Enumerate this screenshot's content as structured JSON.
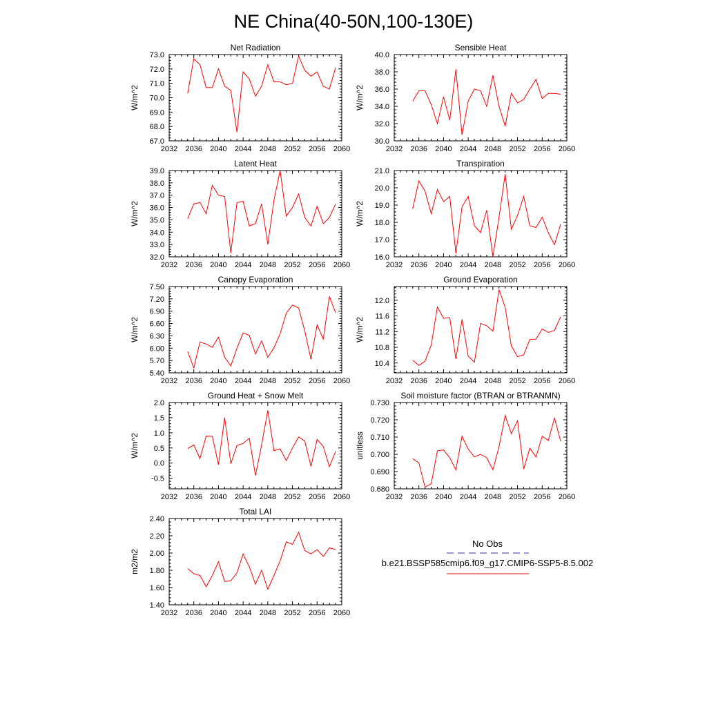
{
  "page": {
    "title": "NE China(40-50N,100-130E)"
  },
  "legend": {
    "obs_label": "No Obs",
    "obs_color": "#3333aa",
    "model_label": "b.e21.BSSP585cmip6.f09_g17.CMIP6-SSP5-8.5.002",
    "model_color": "#ff0000"
  },
  "chart_data": [
    {
      "type": "line",
      "title": "Net Radiation",
      "ylabel": "W/m^2",
      "xlim": [
        2032,
        2060
      ],
      "ylim": [
        67,
        73
      ],
      "xticks": [
        "2032",
        "2036",
        "2040",
        "2044",
        "2048",
        "2052",
        "2056",
        "2060"
      ],
      "yticks": [
        "67.0",
        "68.0",
        "69.0",
        "70.0",
        "71.0",
        "72.0",
        "73.0"
      ],
      "series": [
        {
          "color": "#ff0000",
          "x": [
            2035,
            2036,
            2037,
            2038,
            2039,
            2040,
            2041,
            2042,
            2043,
            2044,
            2045,
            2046,
            2047,
            2048,
            2049,
            2050,
            2051,
            2052,
            2053,
            2054,
            2055,
            2056,
            2057,
            2058,
            2059
          ],
          "y": [
            70.3,
            72.7,
            72.3,
            70.7,
            70.7,
            72.0,
            70.8,
            70.5,
            67.6,
            71.8,
            71.3,
            70.1,
            70.8,
            72.3,
            71.1,
            71.1,
            70.9,
            71.0,
            72.9,
            71.9,
            71.5,
            71.8,
            70.8,
            70.6,
            72.1
          ]
        }
      ]
    },
    {
      "type": "line",
      "title": "Sensible Heat",
      "ylabel": "W/m^2",
      "xlim": [
        2032,
        2060
      ],
      "ylim": [
        30,
        40
      ],
      "xticks": [
        "2032",
        "2036",
        "2040",
        "2044",
        "2048",
        "2052",
        "2056",
        "2060"
      ],
      "yticks": [
        "30.0",
        "32.0",
        "34.0",
        "36.0",
        "38.0",
        "40.0"
      ],
      "series": [
        {
          "color": "#ff0000",
          "x": [
            2035,
            2036,
            2037,
            2038,
            2039,
            2040,
            2041,
            2042,
            2043,
            2044,
            2045,
            2046,
            2047,
            2048,
            2049,
            2050,
            2051,
            2052,
            2053,
            2054,
            2055,
            2056,
            2057,
            2058,
            2059
          ],
          "y": [
            34.6,
            35.8,
            35.8,
            34.2,
            32.0,
            35.1,
            32.4,
            38.3,
            30.7,
            34.6,
            36.0,
            35.8,
            34.0,
            37.6,
            34.0,
            31.7,
            35.5,
            34.4,
            34.8,
            36.0,
            37.1,
            34.9,
            35.5,
            35.5,
            35.4
          ]
        }
      ]
    },
    {
      "type": "line",
      "title": "Latent Heat",
      "ylabel": "W/m^2",
      "xlim": [
        2032,
        2060
      ],
      "ylim": [
        32,
        39
      ],
      "xticks": [
        "2032",
        "2036",
        "2040",
        "2044",
        "2048",
        "2052",
        "2056",
        "2060"
      ],
      "yticks": [
        "32.0",
        "33.0",
        "34.0",
        "35.0",
        "36.0",
        "37.0",
        "38.0",
        "39.0"
      ],
      "series": [
        {
          "color": "#ff0000",
          "x": [
            2035,
            2036,
            2037,
            2038,
            2039,
            2040,
            2041,
            2042,
            2043,
            2044,
            2045,
            2046,
            2047,
            2048,
            2049,
            2050,
            2051,
            2052,
            2053,
            2054,
            2055,
            2056,
            2057,
            2058,
            2059
          ],
          "y": [
            35.1,
            36.3,
            36.4,
            35.5,
            37.8,
            37.0,
            36.9,
            32.3,
            36.4,
            36.5,
            34.5,
            34.7,
            36.3,
            33.0,
            36.6,
            39.0,
            35.3,
            36.0,
            37.1,
            35.2,
            34.5,
            36.1,
            34.7,
            35.2,
            36.3
          ]
        }
      ]
    },
    {
      "type": "line",
      "title": "Transpiration",
      "ylabel": "W/m^2",
      "xlim": [
        2032,
        2060
      ],
      "ylim": [
        16,
        21
      ],
      "xticks": [
        "2032",
        "2036",
        "2040",
        "2044",
        "2048",
        "2052",
        "2056",
        "2060"
      ],
      "yticks": [
        "16.0",
        "17.0",
        "18.0",
        "19.0",
        "20.0",
        "21.0"
      ],
      "series": [
        {
          "color": "#ff0000",
          "x": [
            2035,
            2036,
            2037,
            2038,
            2039,
            2040,
            2041,
            2042,
            2043,
            2044,
            2045,
            2046,
            2047,
            2048,
            2049,
            2050,
            2051,
            2052,
            2053,
            2054,
            2055,
            2056,
            2057,
            2058,
            2059
          ],
          "y": [
            18.8,
            20.4,
            19.8,
            18.5,
            19.9,
            19.2,
            19.5,
            16.2,
            18.9,
            19.5,
            17.8,
            17.4,
            18.7,
            16.0,
            18.3,
            20.8,
            17.6,
            18.4,
            19.5,
            17.8,
            17.7,
            18.3,
            17.4,
            16.7,
            17.9
          ]
        }
      ]
    },
    {
      "type": "line",
      "title": "Canopy Evaporation",
      "ylabel": "W/m^2",
      "xlim": [
        2032,
        2060
      ],
      "ylim": [
        5.4,
        7.5
      ],
      "xticks": [
        "2032",
        "2036",
        "2040",
        "2044",
        "2048",
        "2052",
        "2056",
        "2060"
      ],
      "yticks": [
        "5.40",
        "5.70",
        "6.00",
        "6.30",
        "6.60",
        "6.90",
        "7.20",
        "7.50"
      ],
      "series": [
        {
          "color": "#ff0000",
          "x": [
            2035,
            2036,
            2037,
            2038,
            2039,
            2040,
            2041,
            2042,
            2043,
            2044,
            2045,
            2046,
            2047,
            2048,
            2049,
            2050,
            2051,
            2052,
            2053,
            2054,
            2055,
            2056,
            2057,
            2058,
            2059
          ],
          "y": [
            5.92,
            5.52,
            6.15,
            6.1,
            6.02,
            6.27,
            5.78,
            5.57,
            6.0,
            6.37,
            6.31,
            5.86,
            6.18,
            5.78,
            6.01,
            6.35,
            6.85,
            7.05,
            6.98,
            6.42,
            5.73,
            6.57,
            6.22,
            7.26,
            6.86
          ]
        }
      ]
    },
    {
      "type": "line",
      "title": "Ground Evaporation",
      "ylabel": "W/m^2",
      "xlim": [
        2032,
        2060
      ],
      "ylim": [
        10.15,
        12.35
      ],
      "xticks": [
        "2032",
        "2036",
        "2040",
        "2044",
        "2048",
        "2052",
        "2056",
        "2060"
      ],
      "yticks": [
        "10.4",
        "10.8",
        "11.2",
        "11.6",
        "12.0"
      ],
      "series": [
        {
          "color": "#ff0000",
          "x": [
            2035,
            2036,
            2037,
            2038,
            2039,
            2040,
            2041,
            2042,
            2043,
            2044,
            2045,
            2046,
            2047,
            2048,
            2049,
            2050,
            2051,
            2052,
            2053,
            2054,
            2055,
            2056,
            2057,
            2058,
            2059
          ],
          "y": [
            10.47,
            10.34,
            10.45,
            10.86,
            11.83,
            11.54,
            11.56,
            10.5,
            11.51,
            10.58,
            10.42,
            11.41,
            11.35,
            11.21,
            12.27,
            11.82,
            10.84,
            10.56,
            10.61,
            11.0,
            11.01,
            11.27,
            11.18,
            11.23,
            11.58
          ]
        }
      ]
    },
    {
      "type": "line",
      "title": "Ground Heat + Snow Melt",
      "ylabel": "W/m^2",
      "xlim": [
        2032,
        2060
      ],
      "ylim": [
        -0.85,
        2.0
      ],
      "xticks": [
        "2032",
        "2036",
        "2040",
        "2044",
        "2048",
        "2052",
        "2056",
        "2060"
      ],
      "yticks": [
        "-0.5",
        "0.0",
        "0.5",
        "1.0",
        "1.5",
        "2.0"
      ],
      "series": [
        {
          "color": "#ff0000",
          "x": [
            2035,
            2036,
            2037,
            2038,
            2039,
            2040,
            2041,
            2042,
            2043,
            2044,
            2045,
            2046,
            2047,
            2048,
            2049,
            2050,
            2051,
            2052,
            2053,
            2054,
            2055,
            2056,
            2057,
            2058,
            2059
          ],
          "y": [
            0.48,
            0.6,
            0.15,
            0.89,
            0.88,
            -0.05,
            1.5,
            -0.02,
            0.58,
            0.65,
            0.82,
            -0.41,
            0.6,
            1.74,
            0.41,
            0.47,
            0.08,
            0.5,
            0.86,
            0.73,
            -0.11,
            0.78,
            0.55,
            -0.12,
            0.39
          ]
        }
      ]
    },
    {
      "type": "line",
      "title": "Soil moisture factor (BTRAN or BTRANMN)",
      "ylabel": "unitless",
      "xlim": [
        2032,
        2060
      ],
      "ylim": [
        0.68,
        0.73
      ],
      "xticks": [
        "2032",
        "2036",
        "2040",
        "2044",
        "2048",
        "2052",
        "2056",
        "2060"
      ],
      "yticks": [
        "0.680",
        "0.690",
        "0.700",
        "0.710",
        "0.720",
        "0.730"
      ],
      "series": [
        {
          "color": "#ff0000",
          "x": [
            2035,
            2036,
            2037,
            2038,
            2039,
            2040,
            2041,
            2042,
            2043,
            2044,
            2045,
            2046,
            2047,
            2048,
            2049,
            2050,
            2051,
            2052,
            2053,
            2054,
            2055,
            2056,
            2057,
            2058,
            2059
          ],
          "y": [
            0.6975,
            0.695,
            0.681,
            0.683,
            0.702,
            0.7025,
            0.698,
            0.691,
            0.7105,
            0.703,
            0.6985,
            0.7,
            0.698,
            0.691,
            0.7045,
            0.7225,
            0.712,
            0.7195,
            0.6915,
            0.7035,
            0.6985,
            0.7105,
            0.708,
            0.721,
            0.7075
          ]
        }
      ]
    },
    {
      "type": "line",
      "title": "Total LAI",
      "ylabel": "m2/m2",
      "xlim": [
        2032,
        2060
      ],
      "ylim": [
        1.4,
        2.4
      ],
      "xticks": [
        "2032",
        "2036",
        "2040",
        "2044",
        "2048",
        "2052",
        "2056",
        "2060"
      ],
      "yticks": [
        "1.40",
        "1.60",
        "1.80",
        "2.00",
        "2.20",
        "2.40"
      ],
      "series": [
        {
          "color": "#ff0000",
          "x": [
            2035,
            2036,
            2037,
            2038,
            2039,
            2040,
            2041,
            2042,
            2043,
            2044,
            2045,
            2046,
            2047,
            2048,
            2049,
            2050,
            2051,
            2052,
            2053,
            2054,
            2055,
            2056,
            2057,
            2058,
            2059
          ],
          "y": [
            1.82,
            1.76,
            1.74,
            1.61,
            1.74,
            1.9,
            1.67,
            1.68,
            1.77,
            1.99,
            1.84,
            1.64,
            1.8,
            1.58,
            1.74,
            1.91,
            2.13,
            2.1,
            2.24,
            2.03,
            1.99,
            2.04,
            1.96,
            2.06,
            2.04
          ]
        }
      ]
    }
  ]
}
